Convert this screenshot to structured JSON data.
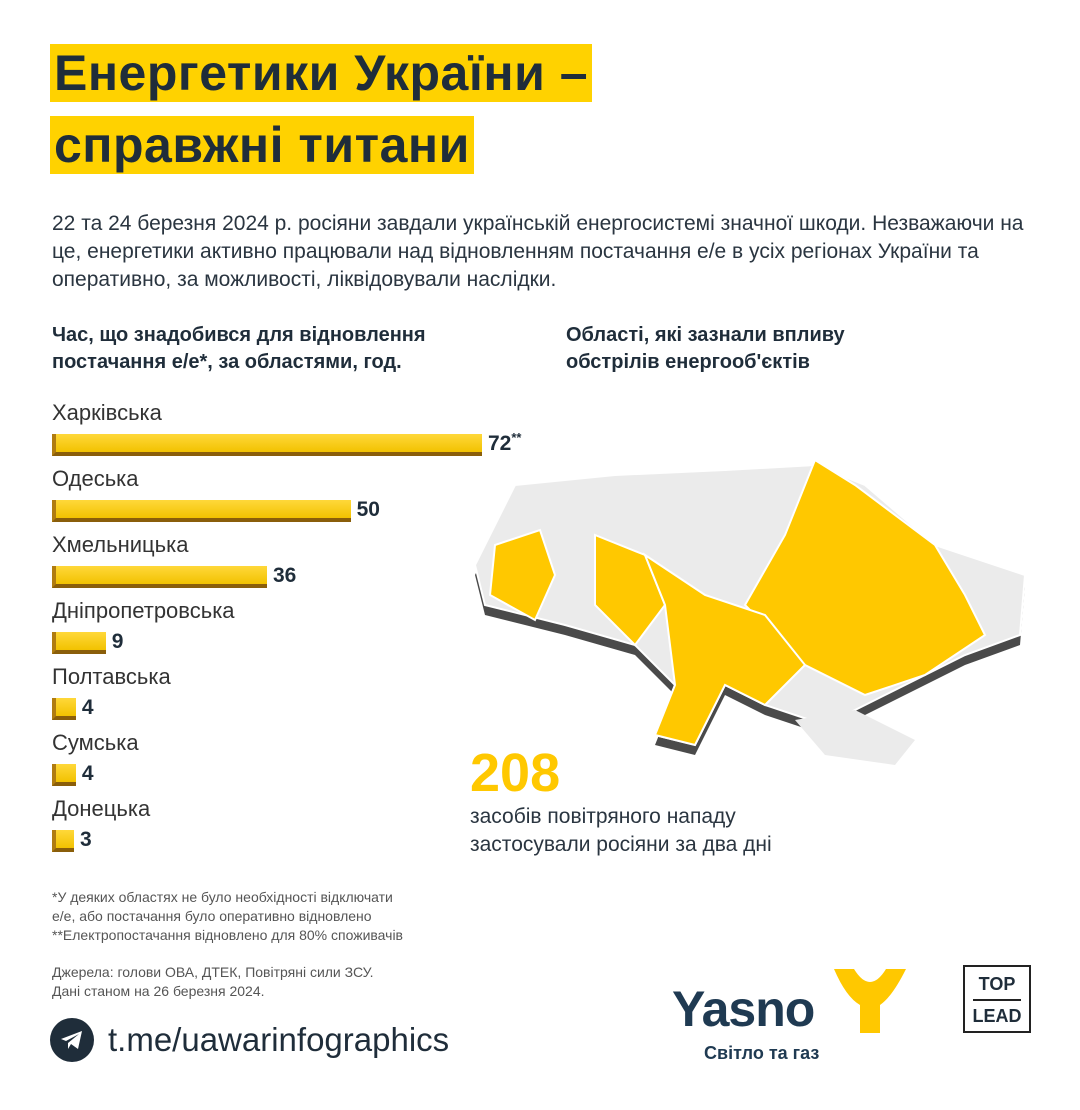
{
  "title": {
    "line1": "Енергетики України –",
    "line2": "справжні титани"
  },
  "intro": "22 та 24 березня 2024 р. росіяни завдали українській енергосистемі значної шкоди. Незважаючи на це, енергетики активно працювали над відновленням постачання е/е в усіх регіонах України та оперативно, за можливості, ліквідовували наслідки.",
  "chart_data": {
    "type": "bar",
    "title": "Час, що знадобився для відновлення постачання е/е*, за областями, год.",
    "categories": [
      "Харківська",
      "Одеська",
      "Хмельницька",
      "Дніпропетровська",
      "Полтавська",
      "Сумська",
      "Донецька"
    ],
    "values": [
      72,
      50,
      36,
      9,
      4,
      4,
      3
    ],
    "value_labels": [
      "72",
      "50",
      "36",
      "9",
      "4",
      "4",
      "3"
    ],
    "annotations": [
      "**",
      "",
      "",
      "",
      "",
      "",
      ""
    ],
    "color": "#ffd200"
  },
  "map": {
    "title": "Області, які зазнали впливу обстрілів енергооб'єктів",
    "highlight_color": "#ffc800",
    "base_color": "#ebebeb"
  },
  "stat": {
    "value": "208",
    "text1": "засобів повітряного нападу",
    "text2": "застосували росіяни за два дні"
  },
  "footnotes": {
    "f1": "*У деяких областях не було необхідності відключати",
    "f2": "е/е, або постачання було оперативно відновлено",
    "f3": "**Електропостачання відновлено для 80% споживачів",
    "s1": "Джерела: голови ОВА, ДТЕК, Повітряні сили ЗСУ.",
    "s2": "Дані станом на 26 березня 2024."
  },
  "telegram": "t.me/uawarinfographics",
  "logo": {
    "name": "Yasno",
    "sub": "Світло та газ"
  },
  "toplead": {
    "top": "TOP",
    "bottom": "LEAD"
  }
}
